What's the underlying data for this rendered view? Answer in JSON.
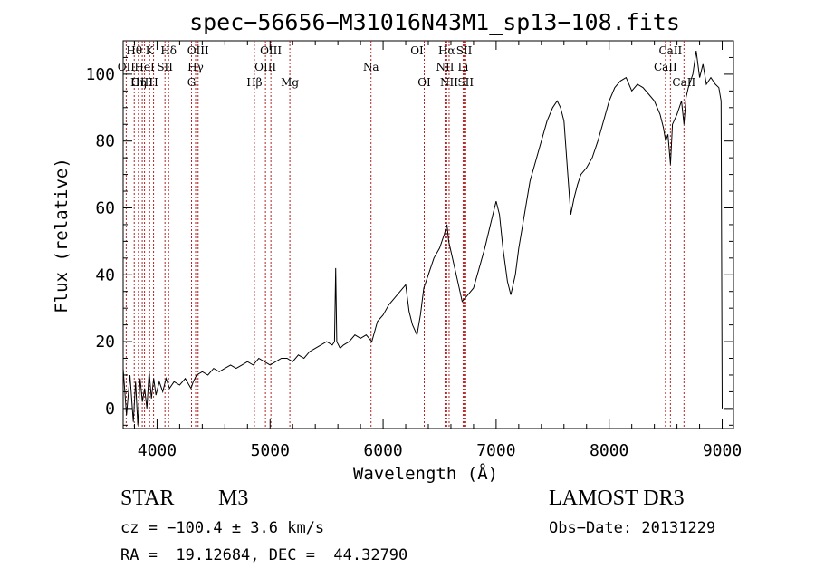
{
  "chart_data": {
    "type": "line",
    "title": "spec−56656−M31016N43M1_sp13−108.fits",
    "xlabel": "Wavelength (Å)",
    "ylabel": "Flux (relative)",
    "xlim": [
      3700,
      9100
    ],
    "ylim": [
      -6,
      110
    ],
    "xticks": [
      {
        "value": 4000,
        "label": "4000"
      },
      {
        "value": 5000,
        "label": "5000"
      },
      {
        "value": 6000,
        "label": "6000"
      },
      {
        "value": 7000,
        "label": "7000"
      },
      {
        "value": 8000,
        "label": "8000"
      },
      {
        "value": 9000,
        "label": "9000"
      }
    ],
    "yticks": [
      {
        "value": 0,
        "label": "0"
      },
      {
        "value": 20,
        "label": "20"
      },
      {
        "value": 40,
        "label": "40"
      },
      {
        "value": 60,
        "label": "60"
      },
      {
        "value": 80,
        "label": "80"
      },
      {
        "value": 100,
        "label": "100"
      }
    ],
    "series": [
      {
        "name": "spectrum",
        "color": "#000000",
        "points": [
          [
            3700,
            12
          ],
          [
            3730,
            -2
          ],
          [
            3760,
            10
          ],
          [
            3790,
            -4
          ],
          [
            3810,
            8
          ],
          [
            3830,
            -5
          ],
          [
            3850,
            9
          ],
          [
            3870,
            2
          ],
          [
            3890,
            6
          ],
          [
            3910,
            0
          ],
          [
            3930,
            11
          ],
          [
            3950,
            3
          ],
          [
            3970,
            9
          ],
          [
            3990,
            4
          ],
          [
            4020,
            8
          ],
          [
            4050,
            5
          ],
          [
            4080,
            9
          ],
          [
            4110,
            6
          ],
          [
            4150,
            8
          ],
          [
            4200,
            7
          ],
          [
            4250,
            9
          ],
          [
            4300,
            6
          ],
          [
            4320,
            8
          ],
          [
            4350,
            10
          ],
          [
            4400,
            11
          ],
          [
            4450,
            10
          ],
          [
            4500,
            12
          ],
          [
            4550,
            11
          ],
          [
            4600,
            12
          ],
          [
            4650,
            13
          ],
          [
            4700,
            12
          ],
          [
            4750,
            13
          ],
          [
            4800,
            14
          ],
          [
            4850,
            13
          ],
          [
            4900,
            15
          ],
          [
            4950,
            14
          ],
          [
            5000,
            13
          ],
          [
            5050,
            14
          ],
          [
            5100,
            15
          ],
          [
            5150,
            15
          ],
          [
            5200,
            14
          ],
          [
            5250,
            16
          ],
          [
            5300,
            15
          ],
          [
            5350,
            17
          ],
          [
            5400,
            18
          ],
          [
            5450,
            19
          ],
          [
            5500,
            20
          ],
          [
            5550,
            19
          ],
          [
            5570,
            20
          ],
          [
            5580,
            42
          ],
          [
            5590,
            20
          ],
          [
            5620,
            18
          ],
          [
            5650,
            19
          ],
          [
            5700,
            20
          ],
          [
            5750,
            22
          ],
          [
            5800,
            21
          ],
          [
            5850,
            22
          ],
          [
            5900,
            20
          ],
          [
            5950,
            26
          ],
          [
            6000,
            28
          ],
          [
            6050,
            31
          ],
          [
            6100,
            33
          ],
          [
            6150,
            35
          ],
          [
            6200,
            37
          ],
          [
            6230,
            29
          ],
          [
            6260,
            25
          ],
          [
            6300,
            22
          ],
          [
            6330,
            28
          ],
          [
            6360,
            36
          ],
          [
            6400,
            40
          ],
          [
            6450,
            45
          ],
          [
            6500,
            48
          ],
          [
            6540,
            52
          ],
          [
            6565,
            55
          ],
          [
            6580,
            50
          ],
          [
            6620,
            44
          ],
          [
            6660,
            38
          ],
          [
            6700,
            32
          ],
          [
            6750,
            34
          ],
          [
            6800,
            36
          ],
          [
            6850,
            42
          ],
          [
            6900,
            48
          ],
          [
            6950,
            55
          ],
          [
            7000,
            62
          ],
          [
            7030,
            58
          ],
          [
            7060,
            48
          ],
          [
            7100,
            38
          ],
          [
            7130,
            34
          ],
          [
            7170,
            40
          ],
          [
            7200,
            48
          ],
          [
            7250,
            58
          ],
          [
            7300,
            68
          ],
          [
            7350,
            74
          ],
          [
            7400,
            80
          ],
          [
            7450,
            86
          ],
          [
            7500,
            90
          ],
          [
            7540,
            92
          ],
          [
            7570,
            90
          ],
          [
            7600,
            86
          ],
          [
            7630,
            72
          ],
          [
            7660,
            58
          ],
          [
            7690,
            63
          ],
          [
            7720,
            67
          ],
          [
            7750,
            70
          ],
          [
            7800,
            72
          ],
          [
            7850,
            75
          ],
          [
            7900,
            80
          ],
          [
            7950,
            86
          ],
          [
            8000,
            92
          ],
          [
            8050,
            96
          ],
          [
            8100,
            98
          ],
          [
            8150,
            99
          ],
          [
            8200,
            95
          ],
          [
            8250,
            97
          ],
          [
            8300,
            96
          ],
          [
            8350,
            94
          ],
          [
            8400,
            92
          ],
          [
            8450,
            88
          ],
          [
            8480,
            84
          ],
          [
            8500,
            80
          ],
          [
            8520,
            82
          ],
          [
            8542,
            73
          ],
          [
            8560,
            85
          ],
          [
            8600,
            88
          ],
          [
            8640,
            92
          ],
          [
            8662,
            85
          ],
          [
            8680,
            93
          ],
          [
            8700,
            96
          ],
          [
            8740,
            100
          ],
          [
            8770,
            107
          ],
          [
            8800,
            99
          ],
          [
            8830,
            103
          ],
          [
            8860,
            97
          ],
          [
            8900,
            99
          ],
          [
            8940,
            97
          ],
          [
            8970,
            96
          ],
          [
            8990,
            92
          ],
          [
            9000,
            0
          ]
        ]
      }
    ],
    "lines": [
      {
        "label": "Hθ",
        "x": 3798,
        "row": 1
      },
      {
        "label": "OII",
        "x": 3727,
        "row": 2
      },
      {
        "label": "OIII",
        "x": 3869,
        "row": 3
      },
      {
        "label": "Hη",
        "x": 3835,
        "row": 3
      },
      {
        "label": "K",
        "x": 3934,
        "row": 1
      },
      {
        "label": "HeI",
        "x": 3889,
        "row": 2
      },
      {
        "label": "SII",
        "x": 4070,
        "row": 2
      },
      {
        "label": "H",
        "x": 3969,
        "row": 3
      },
      {
        "label": "Hδ",
        "x": 4102,
        "row": 1
      },
      {
        "label": "OIII",
        "x": 4363,
        "row": 1
      },
      {
        "label": "Hγ",
        "x": 4341,
        "row": 2
      },
      {
        "label": "G",
        "x": 4305,
        "row": 3
      },
      {
        "label": "OIII",
        "x": 5007,
        "row": 1
      },
      {
        "label": "OIII",
        "x": 4959,
        "row": 2
      },
      {
        "label": "Hβ",
        "x": 4861,
        "row": 3
      },
      {
        "label": "Mg",
        "x": 5175,
        "row": 3
      },
      {
        "label": "Na",
        "x": 5893,
        "row": 2
      },
      {
        "label": "OI",
        "x": 6300,
        "row": 1
      },
      {
        "label": "OI",
        "x": 6364,
        "row": 3
      },
      {
        "label": "Hα",
        "x": 6563,
        "row": 1
      },
      {
        "label": "SII",
        "x": 6717,
        "row": 1
      },
      {
        "label": "NII",
        "x": 6548,
        "row": 2
      },
      {
        "label": "Li",
        "x": 6708,
        "row": 2
      },
      {
        "label": "NII",
        "x": 6584,
        "row": 3
      },
      {
        "label": "SII",
        "x": 6731,
        "row": 3
      },
      {
        "label": "CaII",
        "x": 8542,
        "row": 1
      },
      {
        "label": "CaII",
        "x": 8498,
        "row": 2
      },
      {
        "label": "CaII",
        "x": 8662,
        "row": 3
      }
    ]
  },
  "info": {
    "class_label": "STAR",
    "subclass": "M3",
    "survey": "LAMOST DR3",
    "cz": "cz = −100.4 ± 3.6 km/s",
    "obs_date": "Obs−Date: 20131229",
    "coords": "RA =  19.12684, DEC =  44.32790"
  }
}
